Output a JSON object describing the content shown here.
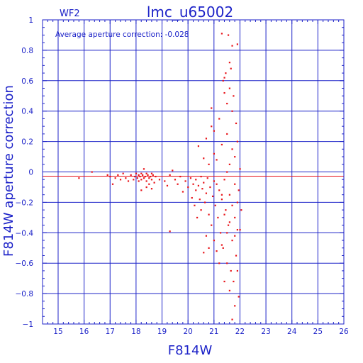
{
  "chart_data": {
    "type": "scatter",
    "title": "lmc_u65002",
    "chip_label": "WF2",
    "annotation": "Average aperture correction: -0.028",
    "xlabel": "F814W",
    "ylabel": "F814W aperture correction",
    "xlim": [
      14.4,
      26
    ],
    "ylim": [
      -1,
      1
    ],
    "xticks": [
      15,
      16,
      17,
      18,
      19,
      20,
      21,
      22,
      23,
      24,
      25,
      26
    ],
    "yticks": [
      -1,
      -0.8,
      -0.6,
      -0.4,
      -0.2,
      0,
      0.2,
      0.4,
      0.6,
      0.8,
      1
    ],
    "ytick_labels": [
      "−1",
      "−0.8",
      "−0.6",
      "−0.4",
      "−0.2",
      "0",
      "0.2",
      "0.4",
      "0.6",
      "0.8",
      "1"
    ],
    "grid": true,
    "reference_lines": [
      {
        "name": "zero",
        "y": 0.0
      },
      {
        "name": "average",
        "y": -0.028
      }
    ],
    "series": [
      {
        "points": [
          [
            15.8,
            -0.04
          ],
          [
            16.3,
            0.0
          ],
          [
            16.9,
            -0.02
          ],
          [
            17.0,
            -0.03
          ],
          [
            17.1,
            -0.08
          ],
          [
            17.2,
            -0.04
          ],
          [
            17.3,
            -0.02
          ],
          [
            17.4,
            -0.05
          ],
          [
            17.5,
            -0.01
          ],
          [
            17.6,
            -0.04
          ],
          [
            17.7,
            -0.06
          ],
          [
            17.8,
            -0.02
          ],
          [
            17.9,
            -0.05
          ],
          [
            17.95,
            -0.03
          ],
          [
            18.0,
            -0.01
          ],
          [
            18.05,
            -0.04
          ],
          [
            18.1,
            -0.02
          ],
          [
            18.1,
            -0.06
          ],
          [
            18.15,
            -0.03
          ],
          [
            18.2,
            -0.01
          ],
          [
            18.2,
            -0.05
          ],
          [
            18.25,
            -0.02
          ],
          [
            18.3,
            0.02
          ],
          [
            18.3,
            -0.04
          ],
          [
            18.35,
            -0.03
          ],
          [
            18.4,
            -0.01
          ],
          [
            18.4,
            -0.06
          ],
          [
            18.45,
            -0.02
          ],
          [
            18.5,
            -0.04
          ],
          [
            18.5,
            -0.08
          ],
          [
            18.55,
            -0.03
          ],
          [
            18.6,
            -0.01
          ],
          [
            18.6,
            -0.05
          ],
          [
            18.65,
            -0.02
          ],
          [
            18.7,
            -0.07
          ],
          [
            18.75,
            -0.03
          ],
          [
            18.2,
            -0.12
          ],
          [
            18.4,
            -0.1
          ],
          [
            18.6,
            -0.11
          ],
          [
            18.9,
            -0.05
          ],
          [
            19.1,
            -0.06
          ],
          [
            19.2,
            -0.09
          ],
          [
            19.3,
            -0.02
          ],
          [
            19.3,
            -0.39
          ],
          [
            19.4,
            0.01
          ],
          [
            19.5,
            -0.05
          ],
          [
            19.6,
            -0.08
          ],
          [
            19.7,
            -0.03
          ],
          [
            19.8,
            -0.13
          ],
          [
            19.9,
            -0.06
          ],
          [
            20.0,
            -0.1
          ],
          [
            20.1,
            -0.04
          ],
          [
            20.15,
            -0.17
          ],
          [
            20.2,
            -0.08
          ],
          [
            20.25,
            -0.22
          ],
          [
            20.3,
            -0.05
          ],
          [
            20.3,
            -0.12
          ],
          [
            20.35,
            -0.3
          ],
          [
            20.4,
            -0.09
          ],
          [
            20.4,
            0.17
          ],
          [
            20.45,
            -0.18
          ],
          [
            20.5,
            -0.03
          ],
          [
            20.5,
            -0.25
          ],
          [
            20.55,
            -0.11
          ],
          [
            20.6,
            -0.07
          ],
          [
            20.6,
            0.09
          ],
          [
            20.65,
            -0.2
          ],
          [
            20.7,
            -0.14
          ],
          [
            20.7,
            0.22
          ],
          [
            20.75,
            -0.04
          ],
          [
            20.8,
            -0.28
          ],
          [
            20.8,
            0.05
          ],
          [
            20.85,
            -0.1
          ],
          [
            20.9,
            -0.35
          ],
          [
            20.9,
            0.3
          ],
          [
            20.95,
            -0.16
          ],
          [
            21.0,
            -0.06
          ],
          [
            21.0,
            0.12
          ],
          [
            20.6,
            -0.53
          ],
          [
            20.8,
            -0.5
          ],
          [
            21.0,
            -0.45
          ],
          [
            20.7,
            -0.42
          ],
          [
            20.9,
            0.42
          ],
          [
            21.0,
            0.27
          ],
          [
            21.05,
            -0.22
          ],
          [
            21.1,
            -0.08
          ],
          [
            21.1,
            0.08
          ],
          [
            21.15,
            -0.3
          ],
          [
            21.2,
            -0.12
          ],
          [
            21.2,
            0.35
          ],
          [
            21.25,
            -0.4
          ],
          [
            21.3,
            -0.18
          ],
          [
            21.3,
            0.18
          ],
          [
            21.35,
            -0.5
          ],
          [
            21.4,
            -0.05
          ],
          [
            21.4,
            0.52
          ],
          [
            21.45,
            -0.25
          ],
          [
            21.5,
            -0.6
          ],
          [
            21.5,
            0.25
          ],
          [
            21.55,
            -0.35
          ],
          [
            21.6,
            -0.15
          ],
          [
            21.6,
            0.55
          ],
          [
            21.65,
            -0.65
          ],
          [
            21.7,
            -0.45
          ],
          [
            21.7,
            0.4
          ],
          [
            21.75,
            -0.72
          ],
          [
            21.8,
            -0.3
          ],
          [
            21.8,
            0.1
          ],
          [
            21.85,
            -0.55
          ],
          [
            21.9,
            -0.2
          ],
          [
            21.9,
            -0.38
          ],
          [
            21.95,
            -0.82
          ],
          [
            22.0,
            -0.38
          ],
          [
            21.3,
            0.91
          ],
          [
            21.55,
            0.9
          ],
          [
            21.7,
            0.83
          ],
          [
            21.9,
            0.84
          ],
          [
            21.45,
            0.65
          ],
          [
            21.65,
            0.68
          ],
          [
            21.4,
            0.62
          ],
          [
            21.6,
            0.72
          ],
          [
            21.5,
            0.45
          ],
          [
            21.35,
            0.6
          ],
          [
            21.6,
            -0.78
          ],
          [
            21.8,
            -0.88
          ],
          [
            21.7,
            -0.97
          ],
          [
            21.4,
            -0.72
          ],
          [
            21.9,
            -0.65
          ],
          [
            21.2,
            -0.6
          ],
          [
            21.1,
            -0.52
          ],
          [
            21.3,
            -0.48
          ],
          [
            21.8,
            -0.42
          ],
          [
            21.5,
            -0.4
          ],
          [
            21.6,
            -0.33
          ],
          [
            21.4,
            -0.28
          ],
          [
            21.7,
            -0.22
          ],
          [
            21.3,
            -0.15
          ],
          [
            21.8,
            -0.08
          ],
          [
            21.5,
            0.0
          ],
          [
            21.6,
            0.05
          ],
          [
            21.7,
            0.15
          ],
          [
            21.85,
            0.32
          ],
          [
            21.75,
            0.5
          ],
          [
            21.9,
            0.2
          ],
          [
            22.0,
            0.02
          ],
          [
            21.95,
            -0.12
          ],
          [
            22.05,
            -0.25
          ]
        ]
      }
    ]
  }
}
